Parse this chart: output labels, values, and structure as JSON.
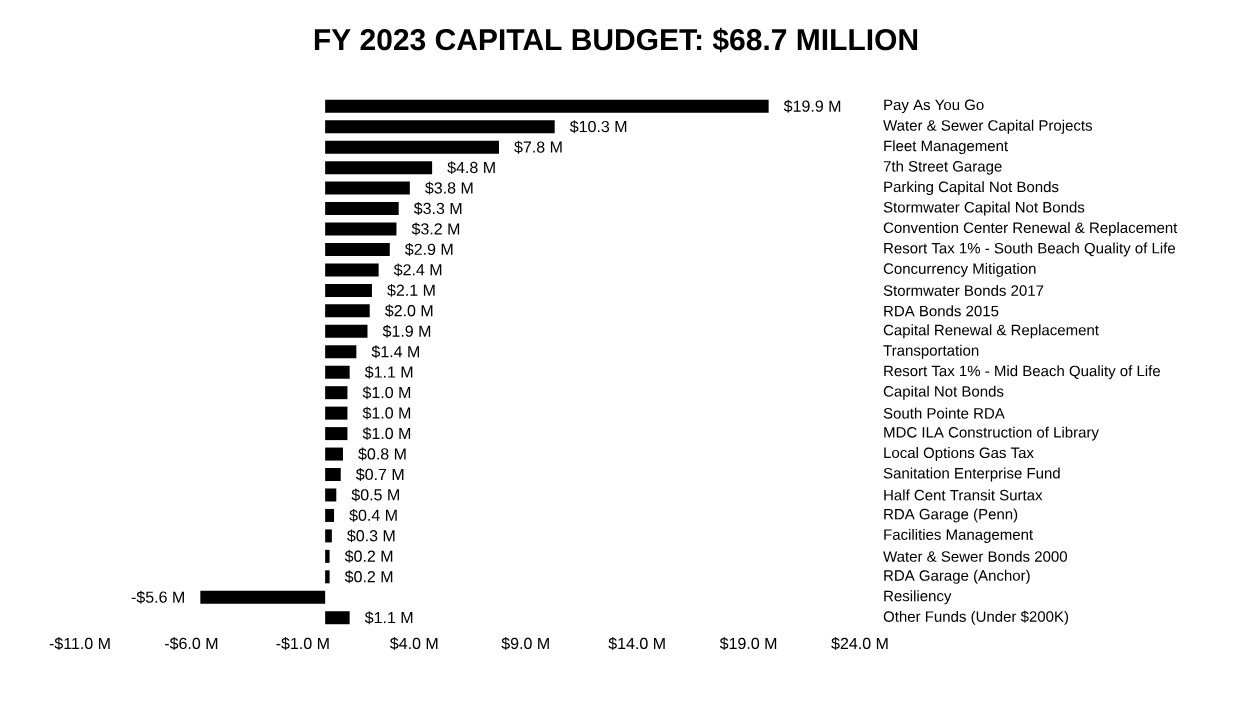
{
  "chart_data": {
    "type": "bar",
    "orientation": "horizontal",
    "title": "FY 2023 CAPITAL BUDGET: $68.7 MILLION",
    "categories": [
      "Pay As You Go",
      "Water & Sewer Capital Projects",
      "Fleet Management",
      "7th Street Garage",
      "Parking Capital Not Bonds",
      "Stormwater Capital Not Bonds",
      "Convention Center Renewal & Replacement",
      "Resort Tax 1% - South Beach Quality of Life",
      "Concurrency Mitigation",
      "Stormwater Bonds 2017",
      "RDA Bonds 2015",
      "Capital Renewal & Replacement",
      "Transportation",
      "Resort Tax 1% - Mid Beach Quality of Life",
      "Capital Not Bonds",
      "South Pointe RDA",
      "MDC ILA Construction of Library",
      "Local Options Gas Tax",
      "Sanitation Enterprise Fund",
      "Half Cent Transit Surtax",
      "RDA Garage (Penn)",
      "Facilities Management",
      "Water & Sewer Bonds 2000",
      "RDA Garage (Anchor)",
      "Resiliency",
      "Other Funds (Under $200K)"
    ],
    "values": [
      19.9,
      10.3,
      7.8,
      4.8,
      3.8,
      3.3,
      3.2,
      2.9,
      2.4,
      2.1,
      2.0,
      1.9,
      1.4,
      1.1,
      1.0,
      1.0,
      1.0,
      0.8,
      0.7,
      0.5,
      0.4,
      0.3,
      0.2,
      0.2,
      -5.6,
      1.1
    ],
    "value_labels": [
      "$19.9 M",
      "$10.3 M",
      "$7.8 M",
      "$4.8 M",
      "$3.8 M",
      "$3.3 M",
      "$3.2 M",
      "$2.9 M",
      "$2.4 M",
      "$2.1 M",
      "$2.0 M",
      "$1.9 M",
      "$1.4 M",
      "$1.1 M",
      "$1.0 M",
      "$1.0 M",
      "$1.0 M",
      "$0.8 M",
      "$0.7 M",
      "$0.5 M",
      "$0.4 M",
      "$0.3 M",
      "$0.2 M",
      "$0.2 M",
      "-$5.6 M",
      "$1.1 M"
    ],
    "color": "#000000",
    "xlim": [
      -11,
      24
    ],
    "xticks": [
      {
        "value": -11,
        "label": "-$11.0 M"
      },
      {
        "value": -6,
        "label": "-$6.0 M"
      },
      {
        "value": -1,
        "label": "-$1.0 M"
      },
      {
        "value": 4,
        "label": "$4.0 M"
      },
      {
        "value": 9,
        "label": "$9.0 M"
      },
      {
        "value": 14,
        "label": "$14.0 M"
      },
      {
        "value": 19,
        "label": "$19.0 M"
      },
      {
        "value": 24,
        "label": "$24.0 M"
      }
    ]
  }
}
